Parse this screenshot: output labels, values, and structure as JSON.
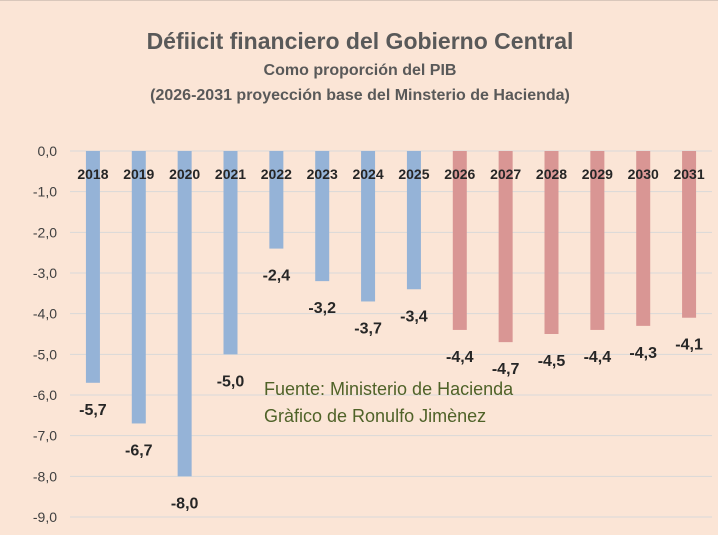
{
  "chart_data": {
    "type": "bar",
    "title": "Défiicit financiero del Gobierno Central",
    "subtitle_1": "Como proporción del PIB",
    "subtitle_2": "(2026-2031 proyección base del Minsterio de Hacienda)",
    "categories": [
      "2018",
      "2019",
      "2020",
      "2021",
      "2022",
      "2023",
      "2024",
      "2025",
      "2026",
      "2027",
      "2028",
      "2029",
      "2030",
      "2031"
    ],
    "values": [
      -5.7,
      -6.7,
      -8.0,
      -5.0,
      -2.4,
      -3.2,
      -3.7,
      -3.4,
      -4.4,
      -4.7,
      -4.5,
      -4.4,
      -4.3,
      -4.1
    ],
    "data_labels": [
      "-5,7",
      "-6,7",
      "-8,0",
      "-5,0",
      "-2,4",
      "-3,2",
      "-3,7",
      "-3,4",
      "-4,4",
      "-4,7",
      "-4,5",
      "-4,4",
      "-4,3",
      "-4,1"
    ],
    "y_ticks": [
      0,
      -1,
      -2,
      -3,
      -4,
      -5,
      -6,
      -7,
      -8,
      -9
    ],
    "y_tick_labels": [
      "0,0",
      "-1,0",
      "-2,0",
      "-3,0",
      "-4,0",
      "-5,0",
      "-6,0",
      "-7,0",
      "-8,0",
      "-9,0"
    ],
    "ylim": [
      -9,
      0
    ],
    "grid": true,
    "colors": {
      "historical": "#95b3d7",
      "projection": "#d99694",
      "gridline": "#d9d9d9",
      "annotation": "#4f6228"
    },
    "projection_start_index": 8,
    "annotations": [
      "Fuente:  Ministerio de Hacienda",
      "Gràfico de Ronulfo Jimènez"
    ]
  }
}
